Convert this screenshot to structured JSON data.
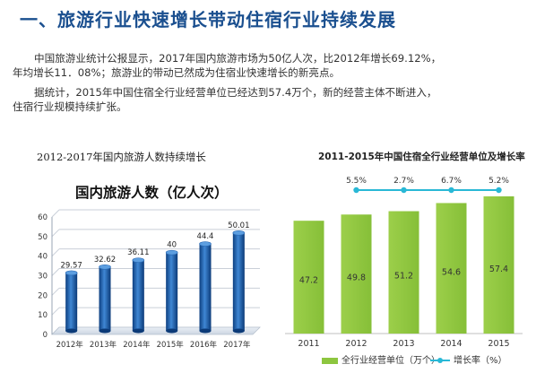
{
  "page": {
    "title": "一、旅游行业快速增长带动住宿行业持续发展",
    "paragraph1": [
      "中国旅游业统计公报显示，2017年国内旅游市场为50亿人次，比2012年增长69.12%，",
      "年均增长11．08%；旅游业的带动已然成为住宿业快速增长的新亮点。"
    ],
    "paragraph2": [
      "据统计，2015年中国住宿全行业经营单位已经达到57.4万个，新的经营主体不断进入，",
      "住宿行业规模持续扩张。"
    ]
  },
  "colors": {
    "title": "#1a4f8f",
    "left_bar_dark": "#0d3f80",
    "left_bar_light": "#3f87d4",
    "right_bar": "#8dc63f",
    "right_line": "#29b8d6"
  },
  "chart_data": [
    {
      "type": "bar",
      "heading": "2012-2017年国内旅游人数持续增长",
      "title": "国内旅游人数（亿人次）",
      "categories": [
        "2012年",
        "2013年",
        "2014年",
        "2015年",
        "2016年",
        "2017年"
      ],
      "values": [
        29.57,
        32.62,
        36.11,
        40,
        44.4,
        50.01
      ],
      "value_labels": [
        "29.57",
        "32.62",
        "36.11",
        "40",
        "44.4",
        "50.01"
      ],
      "ylim": [
        0,
        60
      ],
      "yticks": [
        "0",
        "10",
        "20",
        "30",
        "40",
        "50",
        "60"
      ],
      "grid": true,
      "style": "3d-cylinder"
    },
    {
      "type": "bar",
      "heading": "2011-2015年中国住宿全行业经营单位及增长率",
      "categories": [
        "2011",
        "2012",
        "2013",
        "2014",
        "2015"
      ],
      "series": [
        {
          "name": "全行业经营单位（万个）",
          "type": "bar",
          "values": [
            47.2,
            49.8,
            51.2,
            54.6,
            57.4
          ],
          "value_labels": [
            "47.2",
            "49.8",
            "51.2",
            "54.6",
            "57.4"
          ]
        },
        {
          "name": "增长率（%）",
          "type": "line",
          "values": [
            null,
            5.5,
            2.7,
            6.7,
            5.2
          ],
          "value_labels": [
            "",
            "5.5%",
            "2.7%",
            "6.7%",
            "5.2%"
          ]
        }
      ],
      "legend": "bottom",
      "grid": false
    }
  ]
}
